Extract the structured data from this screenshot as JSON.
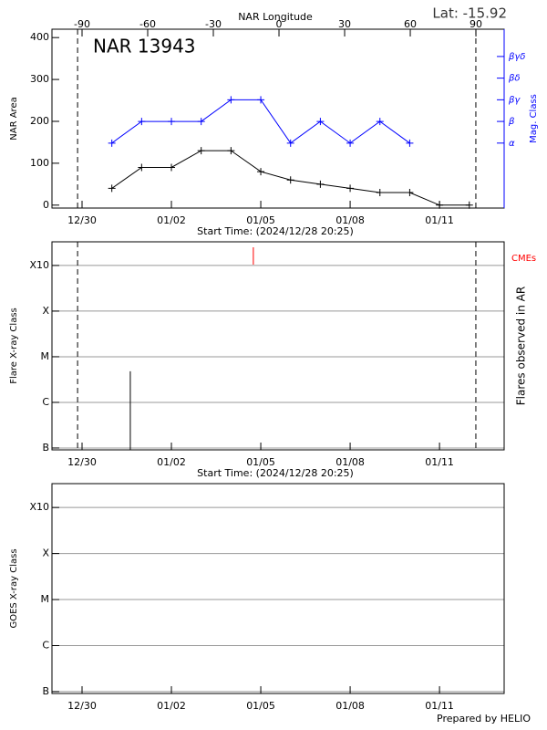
{
  "chart_data": [
    {
      "type": "line",
      "title": "NAR 13943",
      "annotation": "Lat: -15.92",
      "x2label": "NAR Longitude",
      "x2lim": [
        -103.75,
        102.9
      ],
      "x2ticks": [
        -90,
        -60,
        -30,
        0,
        30,
        60,
        90
      ],
      "xlabel": "Start Time: (2024/12/28 20:25)",
      "xlim": [
        -1.01,
        14.17
      ],
      "xticks": [
        {
          "value": 0,
          "label": "12/30"
        },
        {
          "value": 3,
          "label": "01/02"
        },
        {
          "value": 6,
          "label": "01/05"
        },
        {
          "value": 9,
          "label": "01/08"
        },
        {
          "value": 12,
          "label": "01/11"
        }
      ],
      "ylim": [
        -7,
        420
      ],
      "yticks": [
        0,
        100,
        200,
        300,
        400
      ],
      "y2lim": [
        -2,
        6.26
      ],
      "y2ticks": [
        {
          "value": 1,
          "label": "α"
        },
        {
          "value": 2,
          "label": "β"
        },
        {
          "value": 3,
          "label": "βγ"
        },
        {
          "value": 4,
          "label": "βδ"
        },
        {
          "value": 5,
          "label": "βγδ"
        }
      ],
      "vlines": [
        -0.15,
        13.22
      ],
      "grid": false,
      "series": [
        {
          "name": "NAR Area",
          "color": "#000000",
          "x": [
            1,
            2,
            3,
            4,
            5,
            6,
            7,
            8,
            9,
            10,
            11,
            12,
            13
          ],
          "values": [
            40,
            90,
            90,
            130,
            130,
            80,
            60,
            50,
            40,
            30,
            30,
            0,
            0
          ]
        },
        {
          "name": "Mag. Class",
          "color": "#0000ff",
          "axis": "y2",
          "x": [
            1,
            2,
            3,
            4,
            5,
            6,
            7,
            8,
            9,
            10,
            11
          ],
          "values": [
            1,
            2,
            2,
            2,
            3,
            3,
            1,
            2,
            1,
            2,
            1
          ]
        }
      ]
    },
    {
      "type": "flares",
      "ylabel": "Flare X-ray Class",
      "y2label": "Flares observed in AR",
      "xlabel": "Start Time: (2024/12/28 20:25)",
      "log": true,
      "xlim": [
        -1.01,
        14.17
      ],
      "xticks": [
        {
          "value": 0,
          "label": "12/30"
        },
        {
          "value": 3,
          "label": "01/02"
        },
        {
          "value": 6,
          "label": "01/05"
        },
        {
          "value": 9,
          "label": "01/08"
        },
        {
          "value": 12,
          "label": "01/11"
        }
      ],
      "ylim": [
        9.1e-08,
        0.0033
      ],
      "yticks": [
        {
          "value": 1e-07,
          "label": "B"
        },
        {
          "value": 1e-06,
          "label": "C"
        },
        {
          "value": 1e-05,
          "label": "M"
        },
        {
          "value": 0.0001,
          "label": "X"
        },
        {
          "value": 0.001,
          "label": "X10"
        }
      ],
      "vlines": [
        -0.15,
        13.22
      ],
      "grid": true,
      "flares": {
        "color": "#000000",
        "x": [
          1.62
        ],
        "values": [
          4.8e-06
        ]
      },
      "cmes": {
        "name": "CMEs",
        "color": "#ff0000",
        "x": [
          5.75
        ]
      }
    },
    {
      "type": "flares",
      "ylabel": "GOES X-ray Class",
      "log": true,
      "xlim": [
        -1.01,
        14.17
      ],
      "xticks": [
        {
          "value": 0,
          "label": "12/30"
        },
        {
          "value": 3,
          "label": "01/02"
        },
        {
          "value": 6,
          "label": "01/05"
        },
        {
          "value": 9,
          "label": "01/08"
        },
        {
          "value": 12,
          "label": "01/11"
        }
      ],
      "ylim": [
        9.1e-08,
        0.0033
      ],
      "yticks": [
        {
          "value": 1e-07,
          "label": "B"
        },
        {
          "value": 1e-06,
          "label": "C"
        },
        {
          "value": 1e-05,
          "label": "M"
        },
        {
          "value": 0.0001,
          "label": "X"
        },
        {
          "value": 0.001,
          "label": "X10"
        }
      ],
      "grid": true
    }
  ],
  "footer": "Prepared by HELIO"
}
